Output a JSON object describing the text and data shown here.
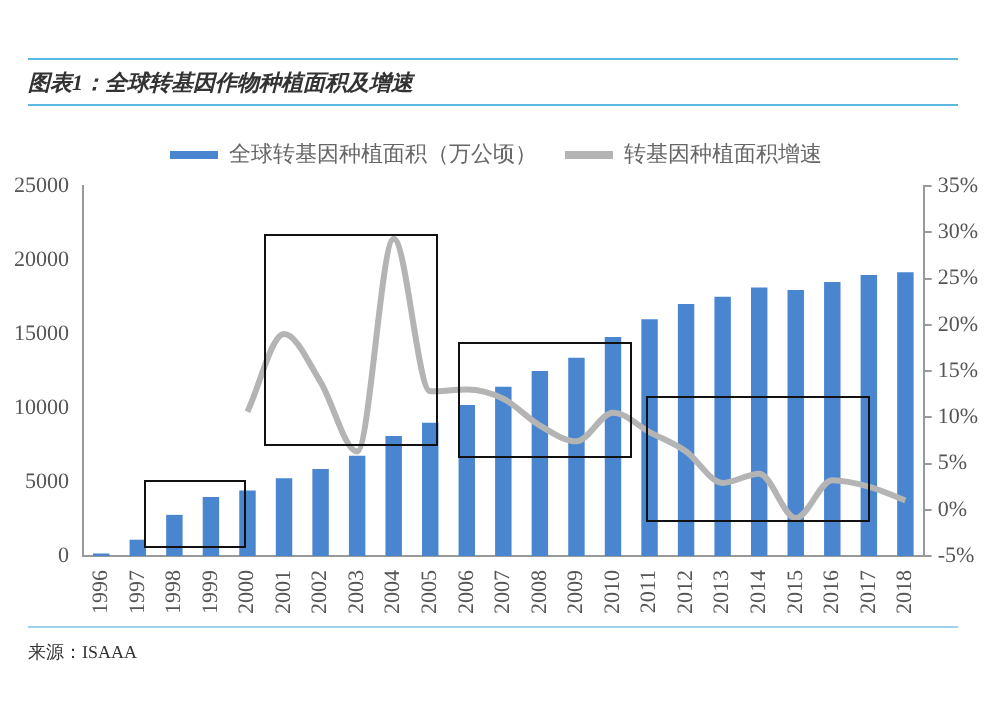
{
  "chart_data": {
    "type": "bar",
    "title": "图表1：全球转基因作物种植面积及增速",
    "annotations": [
      "来源：ISAAA"
    ],
    "categories": [
      "1996",
      "1997",
      "1998",
      "1999",
      "2000",
      "2001",
      "2002",
      "2003",
      "2004",
      "2005",
      "2006",
      "2007",
      "2008",
      "2009",
      "2010",
      "2011",
      "2012",
      "2013",
      "2014",
      "2015",
      "2016",
      "2017",
      "2018"
    ],
    "series": [
      {
        "name": "全球转基因种植面积（万公顷）",
        "color": "#4a86d0",
        "values": [
          170,
          1100,
          2780,
          3990,
          4420,
          5260,
          5870,
          6770,
          8100,
          9000,
          10200,
          11430,
          12500,
          13400,
          14800,
          16000,
          17030,
          17520,
          18150,
          17970,
          18510,
          18980,
          19170
        ]
      },
      {
        "name": "转基因种植面积增速",
        "type": "line",
        "axis": "y2",
        "color": "#b4b4b4",
        "values": [
          null,
          null,
          null,
          null,
          10.6,
          19,
          13.8,
          6.3,
          29.3,
          12.8,
          13,
          12,
          9.1,
          7.4,
          10.5,
          8.4,
          6.3,
          2.9,
          3.9,
          -0.9,
          3.2,
          2.5,
          1.0
        ]
      }
    ],
    "ylim": [
      0,
      25000
    ],
    "yticks": [
      0,
      5000,
      10000,
      15000,
      20000,
      25000
    ],
    "y2lim": [
      -5,
      35
    ],
    "y2ticks": [
      {
        "value": -5,
        "label": "-5%"
      },
      {
        "value": 0,
        "label": "0%"
      },
      {
        "value": 5,
        "label": "5%"
      },
      {
        "value": 10,
        "label": "10%"
      },
      {
        "value": 15,
        "label": "15%"
      },
      {
        "value": 20,
        "label": "20%"
      },
      {
        "value": 25,
        "label": "25%"
      },
      {
        "value": 30,
        "label": "30%"
      },
      {
        "value": 35,
        "label": "35%"
      }
    ],
    "grid": false,
    "legend": "top",
    "marker": "none"
  }
}
